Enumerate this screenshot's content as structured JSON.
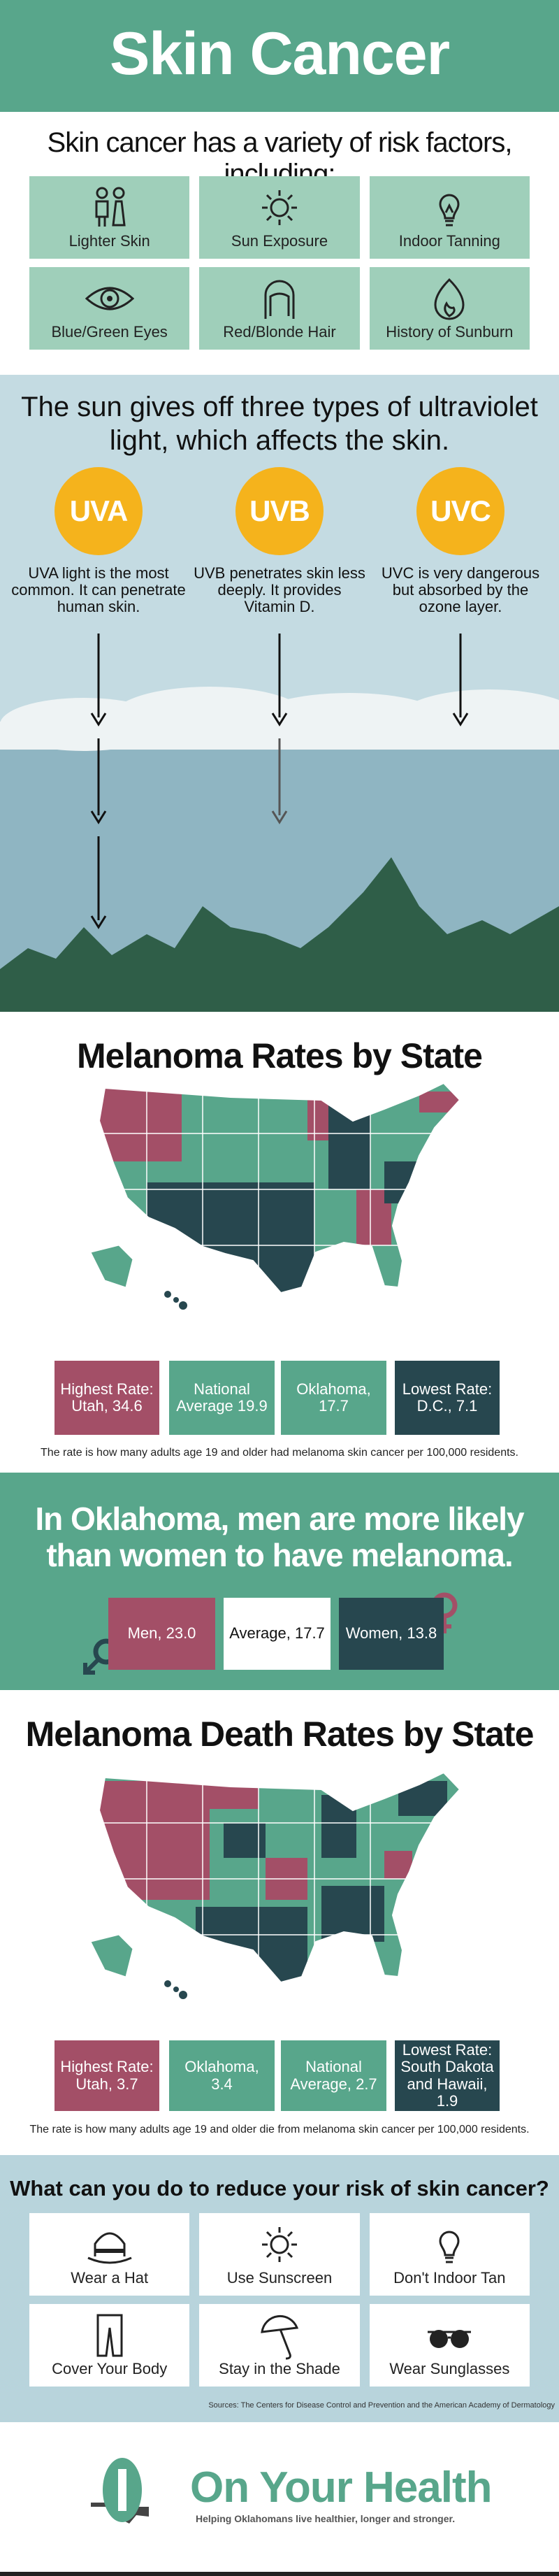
{
  "header": {
    "title": "Skin Cancer"
  },
  "risk_factors": {
    "title": "Skin cancer has a variety of risk factors, including:",
    "items": [
      "Lighter Skin",
      "Sun Exposure",
      "Indoor Tanning",
      "Blue/Green Eyes",
      "Red/Blonde Hair",
      "History of Sunburn"
    ]
  },
  "uv": {
    "title": "The sun gives off three types of ultraviolet light, which affects the skin.",
    "types": [
      {
        "label": "UVA",
        "text": "UVA light is the most common. It can penetrate human skin."
      },
      {
        "label": "UVB",
        "text": "UVB penetrates skin less deeply. It provides Vitamin D."
      },
      {
        "label": "UVC",
        "text": "UVC is very dangerous but absorbed by the ozone layer."
      }
    ]
  },
  "melanoma_rates": {
    "title": "Melanoma Rates by State",
    "stats": [
      "Highest Rate: Utah, 34.6",
      "National Average 19.9",
      "Oklahoma, 17.7",
      "Lowest Rate: D.C., 7.1"
    ],
    "note": "The rate is how many adults age 19 and older had melanoma skin cancer per 100,000 residents."
  },
  "oklahoma": {
    "title": "In Oklahoma, men are more likely than women to have melanoma.",
    "stats": [
      "Men, 23.0",
      "Average, 17.7",
      "Women, 13.8"
    ]
  },
  "death_rates": {
    "title": "Melanoma Death Rates by State",
    "stats": [
      "Highest Rate: Utah, 3.7",
      "Oklahoma, 3.4",
      "National Average, 2.7",
      "Lowest Rate: South Dakota and Hawaii, 1.9"
    ],
    "note": "The rate is how many adults age 19 and older die from melanoma skin cancer per 100,000 residents."
  },
  "prevention": {
    "title": "What can you do to reduce your risk of skin cancer?",
    "items": [
      "Wear a Hat",
      "Use Sunscreen",
      "Don't Indoor Tan",
      "Cover Your Body",
      "Stay in the Shade",
      "Wear Sunglasses"
    ]
  },
  "sources": "Sources: The Centers for Disease Control and Prevention and the American Academy of Dermatology",
  "footer": {
    "brand": "On Your Health",
    "tagline": "Helping Oklahomans live healthier, longer and stronger."
  }
}
